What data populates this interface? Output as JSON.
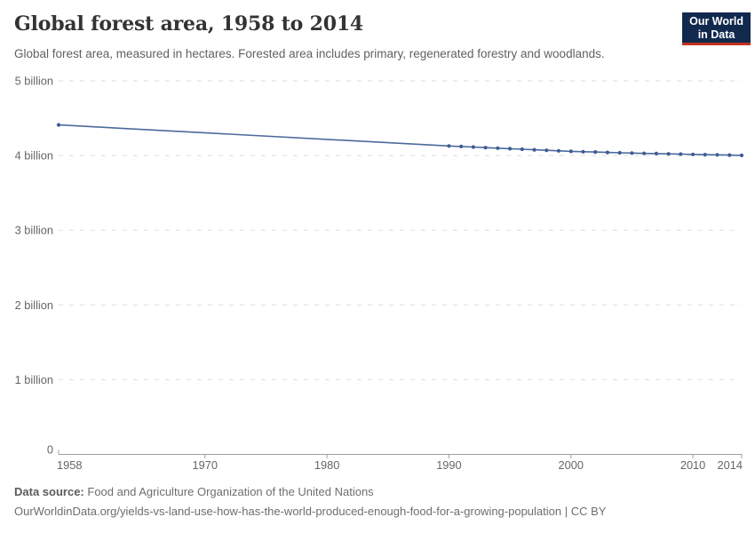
{
  "header": {
    "title": "Global forest area, 1958 to 2014",
    "subtitle": "Global forest area, measured in hectares. Forested area includes primary, regenerated forestry and woodlands.",
    "logo": {
      "line1": "Our World",
      "line2": "in Data",
      "bg_color": "#12294E",
      "accent_color": "#C0321F"
    }
  },
  "footer": {
    "datasource_label": "Data source:",
    "datasource_value": "Food and Agriculture Organization of the United Nations",
    "url_line": "OurWorldinData.org/yields-vs-land-use-how-has-the-world-produced-enough-food-for-a-growing-population | CC BY"
  },
  "chart_data": {
    "type": "line",
    "title": "Global forest area, 1958 to 2014",
    "xlabel": "",
    "ylabel": "",
    "values_unit": "billion hectares",
    "xlim": [
      1958,
      2014
    ],
    "ylim": [
      0,
      5
    ],
    "grid": "horizontal-dashed",
    "grid_color": "#dddddd",
    "axis_color": "#a0a0a0",
    "tick_label_color": "#666666",
    "legend": "none",
    "markers": true,
    "yticks": [
      {
        "value": 0,
        "label": "0"
      },
      {
        "value": 1,
        "label": "1 billion"
      },
      {
        "value": 2,
        "label": "2 billion"
      },
      {
        "value": 3,
        "label": "3 billion"
      },
      {
        "value": 4,
        "label": "4 billion"
      },
      {
        "value": 5,
        "label": "5 billion"
      }
    ],
    "xticks": [
      {
        "value": 1958,
        "label": "1958"
      },
      {
        "value": 1970,
        "label": "1970"
      },
      {
        "value": 1980,
        "label": "1980"
      },
      {
        "value": 1990,
        "label": "1990"
      },
      {
        "value": 2000,
        "label": "2000"
      },
      {
        "value": 2010,
        "label": "2010"
      },
      {
        "value": 2014,
        "label": "2014"
      }
    ],
    "series": [
      {
        "name": "Global forest area",
        "color": "#4C6A9C",
        "marker_color": "#3D5C94",
        "points": [
          [
            1958,
            4.41
          ],
          [
            1990,
            4.128
          ],
          [
            1991,
            4.121
          ],
          [
            1992,
            4.114
          ],
          [
            1993,
            4.106
          ],
          [
            1994,
            4.099
          ],
          [
            1995,
            4.092
          ],
          [
            1996,
            4.085
          ],
          [
            1997,
            4.077
          ],
          [
            1998,
            4.07
          ],
          [
            1999,
            4.063
          ],
          [
            2000,
            4.056
          ],
          [
            2001,
            4.051
          ],
          [
            2002,
            4.047
          ],
          [
            2003,
            4.042
          ],
          [
            2004,
            4.037
          ],
          [
            2005,
            4.033
          ],
          [
            2006,
            4.029
          ],
          [
            2007,
            4.026
          ],
          [
            2008,
            4.023
          ],
          [
            2009,
            4.019
          ],
          [
            2010,
            4.016
          ],
          [
            2011,
            4.012
          ],
          [
            2012,
            4.009
          ],
          [
            2013,
            4.006
          ],
          [
            2014,
            4.002
          ]
        ]
      }
    ]
  }
}
